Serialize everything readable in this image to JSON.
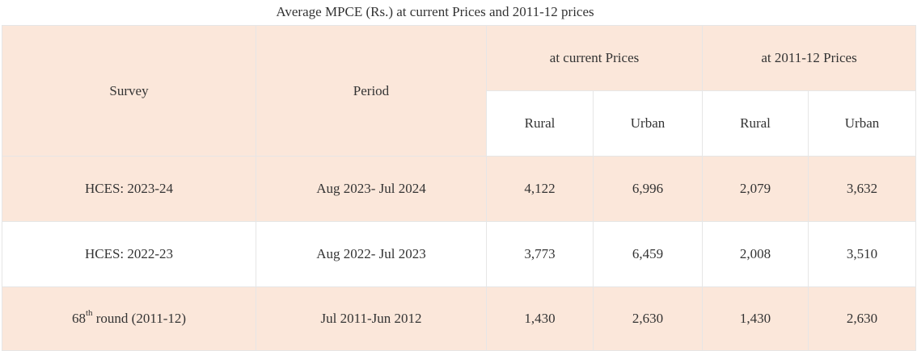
{
  "caption": "Average MPCE (Rs.) at current Prices and 2011-12 prices",
  "headers": {
    "survey": "Survey",
    "period": "Period",
    "current": "at current Prices",
    "base": "at 2011-12 Prices",
    "rural": "Rural",
    "urban": "Urban"
  },
  "rows": [
    {
      "survey": "HCES: 2023-24",
      "period": "Aug 2023- Jul 2024",
      "cur_rural": "4,122",
      "cur_urban": "6,996",
      "base_rural": "2,079",
      "base_urban": "3,632"
    },
    {
      "survey": "HCES: 2022-23",
      "period": "Aug 2022- Jul 2023",
      "cur_rural": "3,773",
      "cur_urban": "6,459",
      "base_rural": "2,008",
      "base_urban": "3,510"
    },
    {
      "survey_num": "68",
      "survey_sup": "th",
      "survey_rest": " round (2011-12)",
      "period": "Jul 2011-Jun 2012",
      "cur_rural": "1,430",
      "cur_urban": "2,630",
      "base_rural": "1,430",
      "base_urban": "2,630"
    }
  ],
  "colors": {
    "peach": "#fbe7da",
    "border": "#e6e6e6",
    "text": "#333333"
  }
}
